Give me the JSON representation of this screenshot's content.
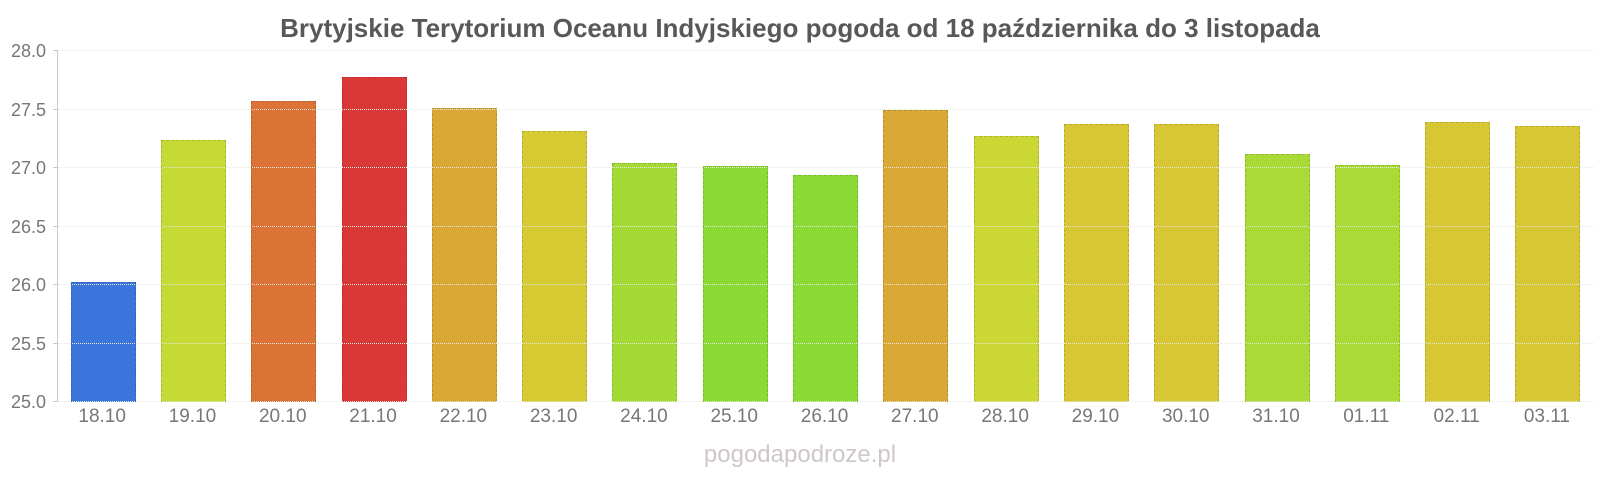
{
  "watermark": {
    "text": "pogodapodroze.pl"
  },
  "chart_data": {
    "type": "bar",
    "title": "Brytyjskie Terytorium Oceanu Indyjskiego pogoda od 18 października do 3 listopada",
    "categories": [
      "18.10",
      "19.10",
      "20.10",
      "21.10",
      "22.10",
      "23.10",
      "24.10",
      "25.10",
      "26.10",
      "27.10",
      "28.10",
      "29.10",
      "30.10",
      "31.10",
      "01.11",
      "02.11",
      "03.11"
    ],
    "values": [
      26.03,
      27.24,
      27.57,
      27.78,
      27.51,
      27.32,
      27.04,
      27.02,
      26.94,
      27.5,
      27.27,
      27.38,
      27.38,
      27.12,
      27.03,
      27.39,
      27.36
    ],
    "colors": [
      "#3b74da",
      "#c6da35",
      "#da7335",
      "#da3737",
      "#daa935",
      "#d7cb33",
      "#a3da35",
      "#8cda36",
      "#8cda36",
      "#daa935",
      "#cbd735",
      "#d7c735",
      "#d7c735",
      "#aada35",
      "#aada35",
      "#d7c735",
      "#d7c735"
    ],
    "xlabel": "",
    "ylabel": "",
    "ylim": [
      25.0,
      28.0
    ],
    "yticks": [
      25.0,
      25.5,
      26.0,
      26.5,
      27.0,
      27.5,
      28.0
    ],
    "grid": "horizontal-dotted",
    "legend_position": "none",
    "axis_text_color": "#76777a",
    "title_color": "#58585a",
    "watermark_color": "#cdc8c5"
  }
}
